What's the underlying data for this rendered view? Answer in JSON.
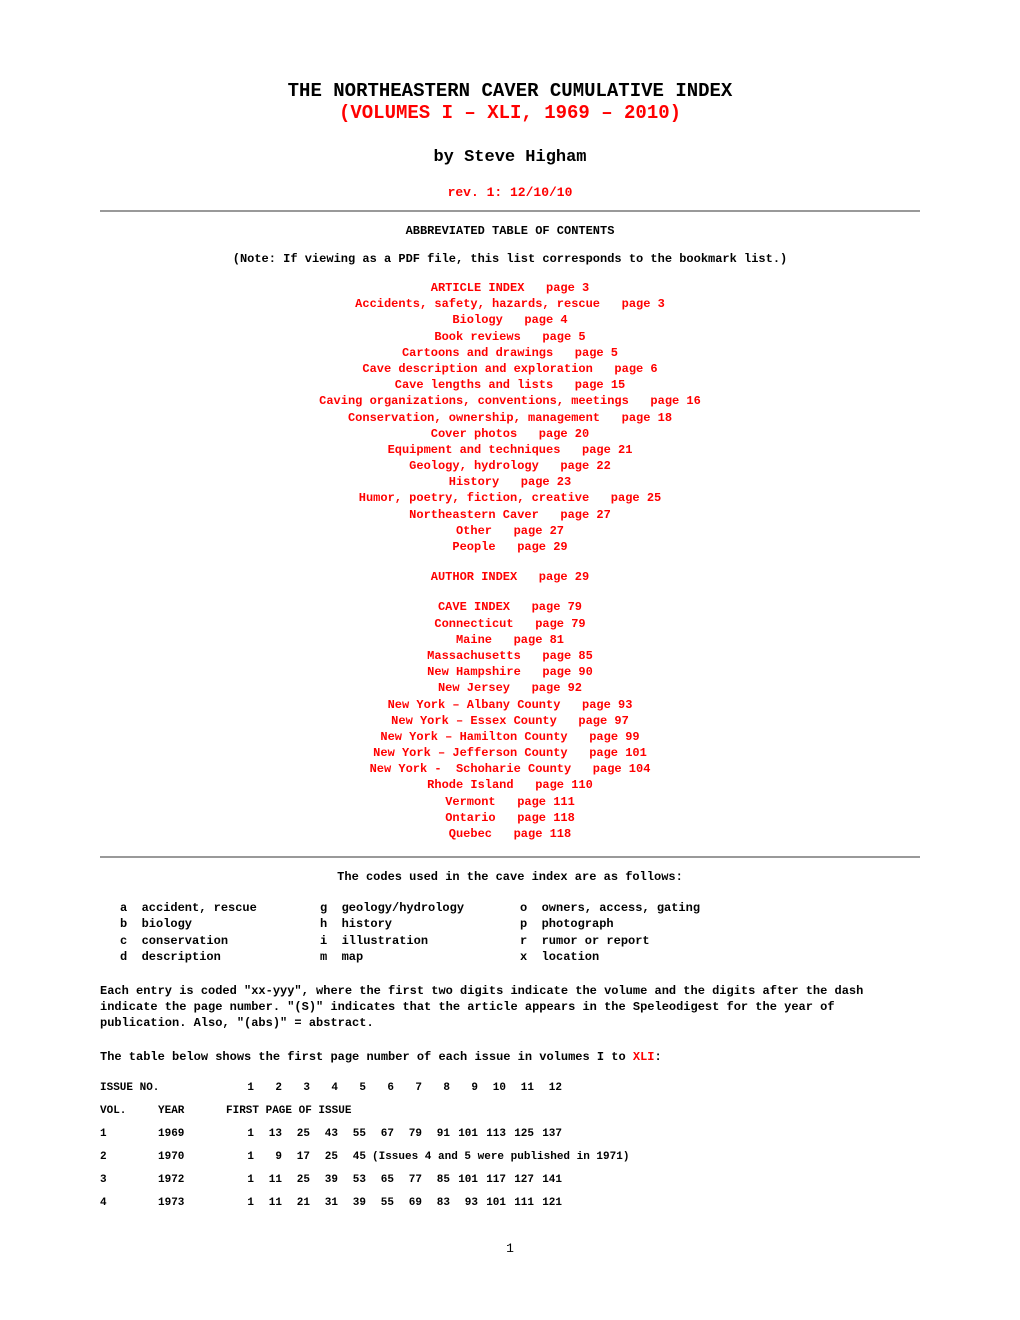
{
  "colors": {
    "text": "#000000",
    "accent": "#ff0000",
    "rule": "#999999",
    "background": "#ffffff"
  },
  "fonts": {
    "family": "Courier New, monospace",
    "title_size_pt": 19,
    "byline_size_pt": 17,
    "body_bold_size_pt": 12,
    "table_size_pt": 11
  },
  "header": {
    "title_main": "THE NORTHEASTERN CAVER CUMULATIVE INDEX",
    "title_sub": "(VOLUMES I – XLI, 1969 – 2010)",
    "by_line": "by Steve Higham",
    "rev_line": "rev. 1: 12/10/10"
  },
  "toc": {
    "header": "ABBREVIATED TABLE OF CONTENTS",
    "note": "(Note: If viewing as a PDF file, this list corresponds to the bookmark list.)",
    "article_index": [
      "ARTICLE INDEX   page 3",
      "Accidents, safety, hazards, rescue   page 3",
      "Biology   page 4",
      "Book reviews   page 5",
      "Cartoons and drawings   page 5",
      "Cave description and exploration   page 6",
      "Cave lengths and lists   page 15",
      "Caving organizations, conventions, meetings   page 16",
      "Conservation, ownership, management   page 18",
      "Cover photos   page 20",
      "Equipment and techniques   page 21",
      "Geology, hydrology   page 22",
      "History   page 23",
      "Humor, poetry, fiction, creative   page 25",
      "Northeastern Caver   page 27",
      "Other   page 27",
      "People   page 29"
    ],
    "author_index": [
      "AUTHOR INDEX   page 29"
    ],
    "cave_index": [
      "CAVE INDEX   page 79",
      "Connecticut   page 79",
      "Maine   page 81",
      "Massachusetts   page 85",
      "New Hampshire   page 90",
      "New Jersey   page 92",
      "New York – Albany County   page 93",
      "New York – Essex County   page 97",
      "New York – Hamilton County   page 99",
      "New York – Jefferson County   page 101",
      "New York -  Schoharie County   page 104",
      "Rhode Island   page 110",
      "Vermont   page 111",
      "Ontario   page 118",
      "Quebec   page 118"
    ]
  },
  "codes": {
    "intro": "The codes used in the cave index are as follows:",
    "col1": [
      "a  accident, rescue",
      "b  biology",
      "c  conservation",
      "d  description"
    ],
    "col2": [
      "g  geology/hydrology",
      "h  history",
      "i  illustration",
      "m  map"
    ],
    "col3": [
      "o  owners, access, gating",
      "p  photograph",
      "r  rumor or report",
      "x  location"
    ]
  },
  "explanation": "Each entry is coded \"xx-yyy\", where the first two digits indicate the volume and the digits after the dash indicate the page number. \"(S)\" indicates that the article appears in the Speleodigest for the year of publication. Also, \"(abs)\" = abstract.",
  "issue_table": {
    "intro_prefix": "The table below shows the first page number of each issue in volumes I to ",
    "intro_highlight": "XLI",
    "intro_suffix": ":",
    "header_issue": "ISSUE NO.",
    "header_issue_nums": [
      "1",
      "2",
      "3",
      "4",
      "5",
      "6",
      "7",
      "8",
      "9",
      "10",
      "11",
      "12"
    ],
    "header_vol": "VOL.",
    "header_year": "YEAR",
    "header_first_page": "FIRST PAGE OF ISSUE",
    "rows": [
      {
        "vol": "1",
        "year": "1969",
        "pages": [
          "1",
          "13",
          "25",
          "43",
          "55",
          "67",
          "79",
          "91",
          "101",
          "113",
          "125",
          "137"
        ],
        "note": ""
      },
      {
        "vol": "2",
        "year": "1970",
        "pages": [
          "1",
          "9",
          "17",
          "25",
          "45"
        ],
        "note": "(Issues 4 and 5 were published in 1971)"
      },
      {
        "vol": "3",
        "year": "1972",
        "pages": [
          "1",
          "11",
          "25",
          "39",
          "53",
          "65",
          "77",
          "85",
          "101",
          "117",
          "127",
          "141"
        ],
        "note": ""
      },
      {
        "vol": "4",
        "year": "1973",
        "pages": [
          "1",
          "11",
          "21",
          "31",
          "39",
          "55",
          "69",
          "83",
          "93",
          "101",
          "111",
          "121"
        ],
        "note": ""
      }
    ]
  },
  "page_number": "1"
}
